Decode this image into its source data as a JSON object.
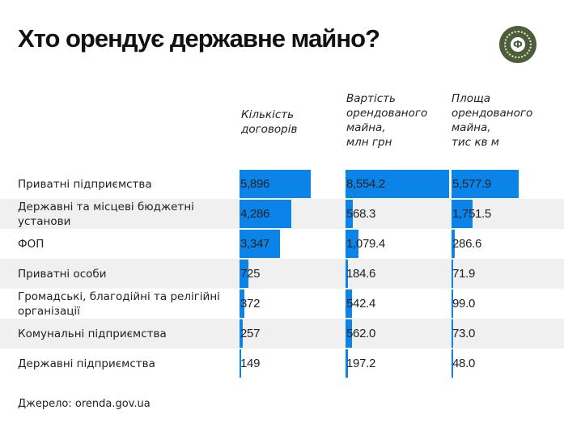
{
  "title": "Хто орендує державне майно?",
  "source": "Джерело: orenda.gov.ua",
  "colors": {
    "bar": "#0a84e8",
    "stripe": "#f0f0f0",
    "logo": "#4e5e3a"
  },
  "chart_data": {
    "type": "table",
    "title": "Хто орендує державне майно?",
    "columns": [
      {
        "key": "contracts",
        "header": "Кількість\nдоговорів"
      },
      {
        "key": "value",
        "header": "Вартість\nорендованого\nмайна,\nмлн грн"
      },
      {
        "key": "area",
        "header": "Площа\nорендованого\nмайна,\nтис кв м"
      }
    ],
    "rows": [
      {
        "label": "Приватні підприємства",
        "values": [
          5896,
          8554.2,
          5577.9
        ],
        "display": [
          "5,896",
          "8,554.2",
          "5,577.9"
        ]
      },
      {
        "label": "Державні та місцеві бюджетні установи",
        "values": [
          4286,
          568.3,
          1751.5
        ],
        "display": [
          "4,286",
          "568.3",
          "1,751.5"
        ]
      },
      {
        "label": "ФОП",
        "values": [
          3347,
          1079.4,
          286.6
        ],
        "display": [
          "3,347",
          "1,079.4",
          "286.6"
        ]
      },
      {
        "label": "Приватні особи",
        "values": [
          725,
          184.6,
          71.9
        ],
        "display": [
          "725",
          "184.6",
          "71.9"
        ]
      },
      {
        "label": "Громадські, благодійні та релігійні організації",
        "values": [
          372,
          542.4,
          99.0
        ],
        "display": [
          "372",
          "542.4",
          "99.0"
        ]
      },
      {
        "label": "Комунальні підприємства",
        "values": [
          257,
          562.0,
          73.0
        ],
        "display": [
          "257",
          "562.0",
          "73.0"
        ]
      },
      {
        "label": "Державні підприємства",
        "values": [
          149,
          197.2,
          48.0
        ],
        "display": [
          "149",
          "197.2",
          "48.0"
        ]
      }
    ]
  }
}
